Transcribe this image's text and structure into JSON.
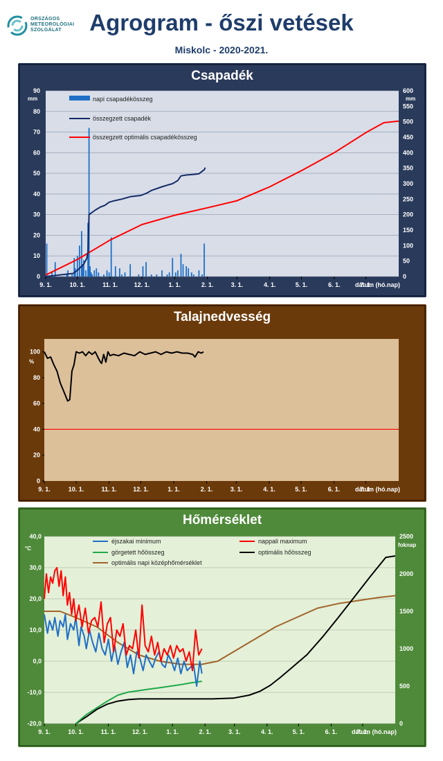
{
  "header": {
    "org_line1": "ORSZÁGOS",
    "org_line2": "METEOROLÓGIAI",
    "org_line3": "SZOLGÁLAT",
    "title": "Agrogram - őszi vetések",
    "subtitle": "Miskolc - 2020-2021."
  },
  "x_axis": {
    "ticks": [
      "9. 1.",
      "10. 1.",
      "11. 1.",
      "12. 1.",
      "1. 1.",
      "2. 1.",
      "3. 1.",
      "4. 1.",
      "5. 1.",
      "6. 1.",
      "7. 1."
    ],
    "tick_days": [
      0,
      30,
      61,
      91,
      122,
      153,
      181,
      212,
      242,
      273,
      303
    ],
    "label": "dátum (hó.nap)",
    "max_day": 334
  },
  "colors": {
    "precip_bg": "#d8dde8",
    "precip_frame": "#2a3a5a",
    "soil_bg": "#dcc09a",
    "soil_frame": "#6b3a0a",
    "temp_bg": "#e4f0d8",
    "temp_frame": "#4f8a3a",
    "bar": "#1f6fc6",
    "navy": "#142a66",
    "red": "#ff0000",
    "green": "#1fa84a",
    "brown": "#a0642a",
    "blue": "#1f6fc6",
    "black": "#000000"
  },
  "chart_data": [
    {
      "type": "bar",
      "title": "Csapadék",
      "ylabel": "mm",
      "y2label": "mm",
      "ylim": [
        0,
        90
      ],
      "y_ticks": [
        "0",
        "10",
        "20",
        "30",
        "40",
        "50",
        "60",
        "70",
        "80",
        "90"
      ],
      "y2lim": [
        0,
        600
      ],
      "y2_ticks": [
        "0",
        "50",
        "100",
        "150",
        "200",
        "250",
        "300",
        "350",
        "400",
        "450",
        "500",
        "550",
        "600"
      ],
      "series": [
        {
          "name": "napi csapadékösszeg",
          "kind": "bar",
          "x": [
            1,
            6,
            9,
            20,
            21,
            25,
            27,
            28,
            30,
            32,
            34,
            35,
            36,
            38,
            40,
            41,
            42,
            43,
            44,
            46,
            48,
            50,
            55,
            58,
            60,
            62,
            66,
            70,
            72,
            75,
            80,
            88,
            92,
            95,
            100,
            105,
            110,
            115,
            117,
            120,
            123,
            125,
            128,
            130,
            133,
            135,
            138,
            140,
            145,
            148,
            150
          ],
          "values": [
            16,
            2,
            7,
            1,
            3,
            1,
            9,
            4,
            10,
            15,
            22,
            6,
            8,
            3,
            26,
            72,
            5,
            2,
            1,
            3,
            4,
            2,
            1,
            3,
            2,
            19,
            5,
            4,
            1,
            2,
            6,
            1,
            5,
            7,
            1,
            1,
            3,
            1,
            2,
            9,
            2,
            3,
            11,
            6,
            5,
            4,
            2,
            1,
            3,
            1,
            16
          ]
        },
        {
          "name": "összegzett csapadék",
          "kind": "line",
          "axis": "right",
          "x": [
            0,
            26,
            30,
            36,
            39,
            40,
            41,
            43,
            47,
            52,
            56,
            60,
            65,
            72,
            80,
            90,
            96,
            100,
            110,
            115,
            120,
            125,
            128,
            133,
            140,
            145,
            150,
            151
          ],
          "values": [
            0,
            10,
            20,
            40,
            60,
            80,
            200,
            205,
            215,
            225,
            230,
            240,
            245,
            250,
            258,
            262,
            270,
            278,
            290,
            295,
            300,
            310,
            325,
            328,
            330,
            332,
            345,
            352
          ]
        },
        {
          "name": "összegzett optimális csapadékösszeg",
          "kind": "line",
          "axis": "right",
          "x": [
            0,
            30,
            61,
            91,
            122,
            153,
            181,
            212,
            242,
            273,
            303,
            320,
            334
          ],
          "values": [
            5,
            55,
            118,
            168,
            198,
            222,
            245,
            290,
            342,
            400,
            465,
            497,
            502
          ]
        }
      ]
    },
    {
      "type": "line",
      "title": "Talajnedvesség",
      "ylabel": "%",
      "ylim": [
        0,
        110
      ],
      "y_ticks": [
        "0",
        "20",
        "40",
        "60",
        "80",
        "100"
      ],
      "reference_line": 40,
      "series": [
        {
          "name": "",
          "x": [
            0,
            3,
            6,
            9,
            12,
            15,
            18,
            21,
            22,
            24,
            26,
            28,
            30,
            33,
            36,
            39,
            42,
            45,
            48,
            51,
            53,
            54,
            56,
            58,
            60,
            62,
            65,
            70,
            75,
            80,
            85,
            90,
            95,
            100,
            105,
            110,
            115,
            120,
            125,
            130,
            135,
            140,
            142,
            145,
            148,
            150
          ],
          "values": [
            100,
            95,
            96,
            90,
            85,
            76,
            70,
            64,
            62,
            63,
            85,
            90,
            100,
            99,
            100,
            97,
            100,
            98,
            100,
            95,
            92,
            91,
            98,
            92,
            100,
            97,
            98,
            97,
            99,
            98,
            97,
            100,
            98,
            99,
            100,
            98,
            100,
            99,
            100,
            99,
            99,
            98,
            96,
            100,
            99,
            100
          ]
        }
      ]
    },
    {
      "type": "line",
      "title": "Hőmérséklet",
      "ylabel": "°C",
      "y2label": "foknap",
      "ylim": [
        -20,
        40
      ],
      "y_ticks": [
        "-20,0",
        "-10,0",
        "0,0",
        "10,0",
        "20,0",
        "30,0",
        "40,0"
      ],
      "y2lim": [
        0,
        2500
      ],
      "y2_ticks": [
        "0",
        "500",
        "1000",
        "1500",
        "2000",
        "2500"
      ],
      "series": [
        {
          "name": "éjszakai minimum",
          "axis": "left",
          "x": [
            0,
            3,
            5,
            8,
            10,
            13,
            15,
            18,
            20,
            22,
            25,
            28,
            30,
            33,
            35,
            38,
            40,
            43,
            46,
            49,
            52,
            55,
            58,
            61,
            64,
            67,
            70,
            73,
            76,
            79,
            82,
            85,
            88,
            91,
            94,
            97,
            100,
            103,
            106,
            109,
            112,
            115,
            118,
            121,
            124,
            127,
            130,
            133,
            136,
            139,
            142,
            145,
            148,
            150
          ],
          "values": [
            15,
            9,
            13,
            10,
            14,
            8,
            13,
            11,
            15,
            7,
            12,
            10,
            14,
            5,
            11,
            8,
            4,
            10,
            6,
            3,
            9,
            4,
            2,
            7,
            0,
            5,
            -1,
            3,
            6,
            -2,
            2,
            -4,
            3,
            1,
            -3,
            2,
            0,
            -2,
            1,
            3,
            -1,
            -2,
            2,
            0,
            -3,
            1,
            -4,
            0,
            -3,
            -2,
            -1,
            -8,
            0,
            -4
          ]
        },
        {
          "name": "nappali maximum",
          "axis": "left",
          "x": [
            0,
            2,
            4,
            6,
            8,
            10,
            12,
            14,
            16,
            18,
            20,
            22,
            24,
            26,
            28,
            30,
            33,
            36,
            39,
            42,
            45,
            48,
            51,
            54,
            57,
            60,
            63,
            66,
            69,
            72,
            75,
            78,
            81,
            84,
            87,
            90,
            93,
            96,
            99,
            102,
            105,
            108,
            111,
            114,
            117,
            120,
            123,
            126,
            129,
            132,
            135,
            138,
            141,
            144,
            147,
            150
          ],
          "values": [
            20,
            28,
            22,
            27,
            25,
            29,
            30,
            24,
            29,
            21,
            27,
            18,
            22,
            15,
            20,
            13,
            18,
            11,
            17,
            9,
            13,
            14,
            11,
            19,
            6,
            12,
            14,
            3,
            10,
            8,
            12,
            2,
            5,
            4,
            10,
            1,
            18,
            5,
            3,
            8,
            2,
            6,
            0,
            4,
            2,
            5,
            1,
            5,
            3,
            4,
            0,
            3,
            -3,
            10,
            2,
            4
          ]
        },
        {
          "name": "görgetett hőösszeg",
          "axis": "right",
          "x": [
            30,
            40,
            50,
            60,
            70,
            80,
            90,
            100,
            110,
            120,
            130,
            140,
            150
          ],
          "values": [
            0,
            120,
            210,
            300,
            380,
            420,
            440,
            460,
            480,
            500,
            520,
            545,
            565
          ]
        },
        {
          "name": "optimális hőösszeg",
          "axis": "right",
          "x": [
            30,
            40,
            50,
            60,
            70,
            80,
            90,
            100,
            120,
            140,
            160,
            180,
            195,
            205,
            215,
            225,
            235,
            250,
            265,
            280,
            295,
            310,
            325,
            334
          ],
          "values": [
            0,
            90,
            190,
            260,
            300,
            320,
            330,
            330,
            330,
            330,
            330,
            340,
            380,
            430,
            510,
            620,
            740,
            920,
            1160,
            1420,
            1690,
            1960,
            2220,
            2240
          ]
        },
        {
          "name": "optimális napi középhőmérséklet",
          "axis": "left",
          "x": [
            0,
            15,
            30,
            50,
            70,
            90,
            110,
            130,
            150,
            165,
            180,
            200,
            220,
            240,
            260,
            280,
            300,
            320,
            334
          ],
          "values": [
            16,
            16,
            14,
            11,
            6,
            2,
            0,
            -1,
            -1,
            0,
            3,
            7,
            11,
            14,
            17,
            18.5,
            19.5,
            20.5,
            21
          ]
        }
      ]
    }
  ]
}
